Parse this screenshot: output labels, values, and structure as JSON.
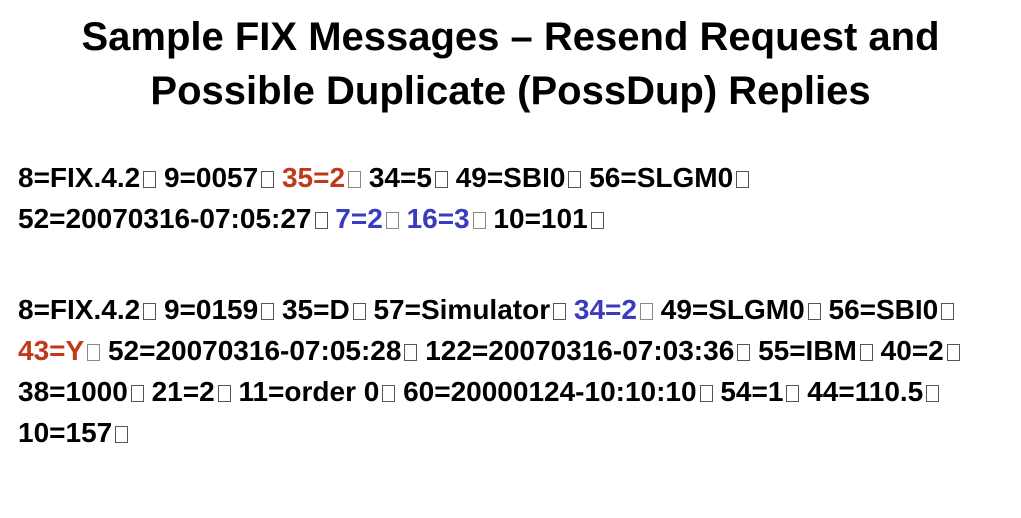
{
  "title": {
    "line1": "Sample FIX Messages – Resend Request and",
    "line2": "Possible Duplicate (PossDup) Replies"
  },
  "highlight_colors": {
    "red": "#c0391b",
    "blue": "#3b3bbf"
  },
  "messages": [
    {
      "fields": [
        {
          "text": "8=FIX.4.2",
          "color": ""
        },
        {
          "text": "9=0057",
          "color": ""
        },
        {
          "text": "35=2",
          "color": "red"
        },
        {
          "text": "34=5",
          "color": ""
        },
        {
          "text": "49=SBI0",
          "color": ""
        },
        {
          "text": "56=SLGM0",
          "color": ""
        },
        {
          "text": "52",
          "color": "",
          "no_delim": true
        },
        {
          "text": "=20070316-07:05:27",
          "color": ""
        },
        {
          "text": "7=2",
          "color": "blue"
        },
        {
          "text": "16=3",
          "color": "blue"
        },
        {
          "text": "10=101",
          "color": ""
        }
      ]
    },
    {
      "fields": [
        {
          "text": "8=FIX.4.2",
          "color": ""
        },
        {
          "text": "9=0159",
          "color": ""
        },
        {
          "text": "35=D",
          "color": ""
        },
        {
          "text": "57=Simulator",
          "color": ""
        },
        {
          "text": "34=2",
          "color": "blue"
        },
        {
          "text": "49=SLGM",
          "color": "",
          "no_delim": true
        },
        {
          "text": "0",
          "color": ""
        },
        {
          "text": "56=SBI0",
          "color": ""
        },
        {
          "text": "43=Y",
          "color": "red"
        },
        {
          "text": "52=20070316-07:05:28",
          "color": ""
        },
        {
          "text": "122=20070316-07:03:36",
          "color": ""
        },
        {
          "text": "55=IBM",
          "color": ""
        },
        {
          "text": "40=2",
          "color": ""
        },
        {
          "text": "38=1000",
          "color": ""
        },
        {
          "text": "21=2",
          "color": ""
        },
        {
          "text": "11=order 0",
          "color": ""
        },
        {
          "text": "60=20000124-10:10:10",
          "color": ""
        },
        {
          "text": "54=1",
          "color": ""
        },
        {
          "text": "44=110.5",
          "color": ""
        },
        {
          "text": "10=157",
          "color": ""
        }
      ]
    }
  ]
}
